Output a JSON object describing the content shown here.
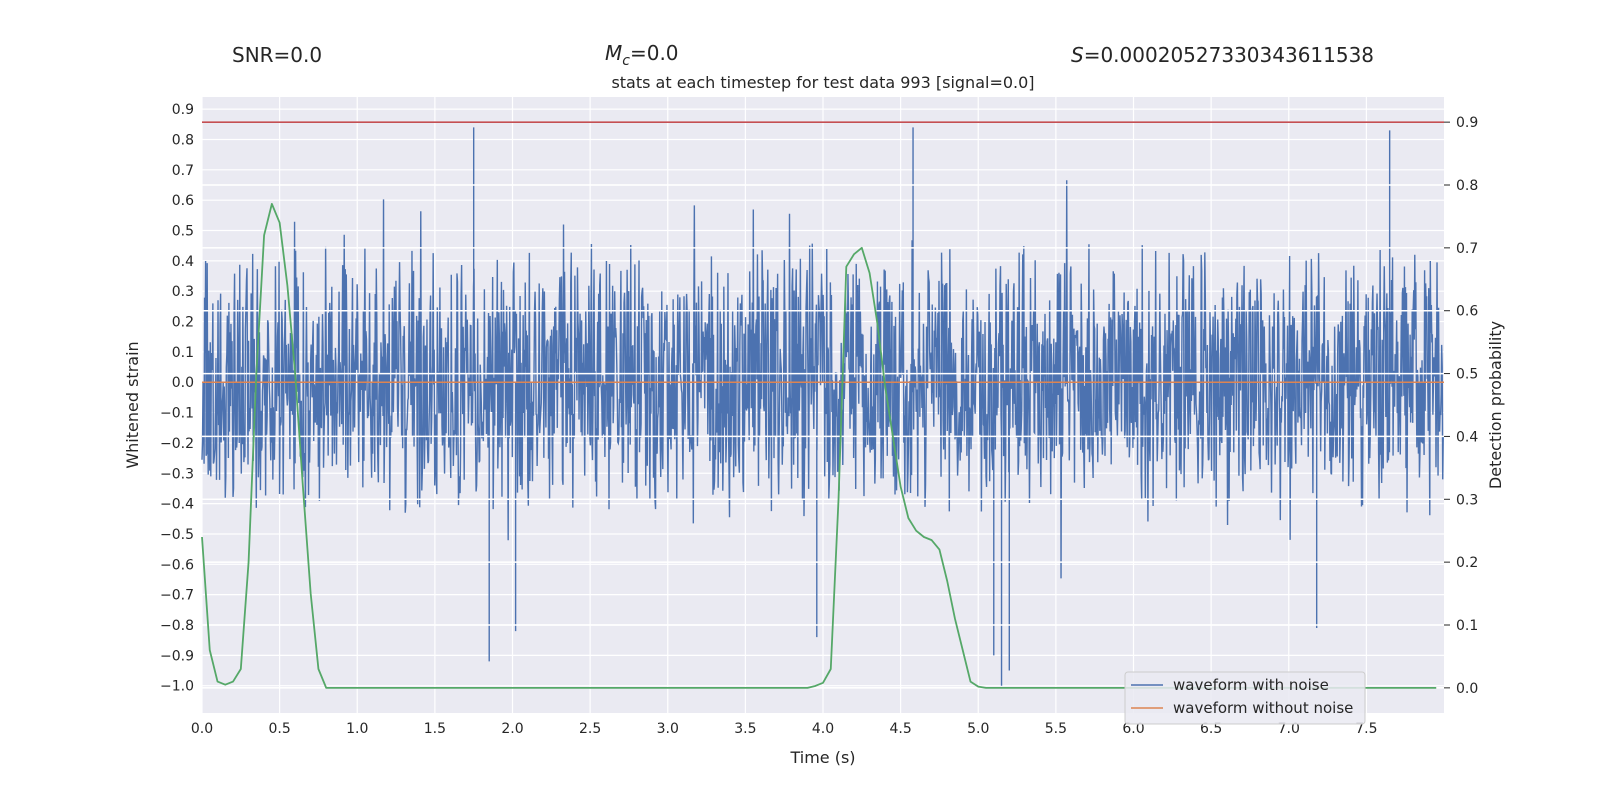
{
  "header": {
    "snr": "SNR=0.0",
    "mc_symbol": "M",
    "mc_sub": "c",
    "mc_value": "=0.0",
    "s_symbol": "S",
    "s_value": "=0.00020527330343611538"
  },
  "chart_data": {
    "type": "line",
    "title": "stats at each timestep for test data 993 [signal=0.0]",
    "xlabel": "Time (s)",
    "ylabel": "Whitened strain",
    "y2label": "Detection probability",
    "xlim": [
      0.0,
      8.0
    ],
    "ylim": [
      -1.09,
      0.94
    ],
    "y2lim": [
      -0.04,
      0.94
    ],
    "xticks": [
      "0.0",
      "0.5",
      "1.0",
      "1.5",
      "2.0",
      "2.5",
      "3.0",
      "3.5",
      "4.0",
      "4.5",
      "5.0",
      "5.5",
      "6.0",
      "6.5",
      "7.0",
      "7.5"
    ],
    "yticks": [
      "0.9",
      "0.8",
      "0.7",
      "0.6",
      "0.5",
      "0.4",
      "0.3",
      "0.2",
      "0.1",
      "0.0",
      "-0.1",
      "-0.2",
      "-0.3",
      "-0.4",
      "-0.5",
      "-0.6",
      "-0.7",
      "-0.8",
      "-0.9",
      "-1.0"
    ],
    "y2ticks": [
      "0.9",
      "0.8",
      "0.7",
      "0.6",
      "0.5",
      "0.4",
      "0.3",
      "0.2",
      "0.1",
      "0.0"
    ],
    "threshold": 0.9,
    "series": [
      {
        "name": "waveform with noise",
        "color": "#4c72b0",
        "axis": "left",
        "description": "dense noise approx. within +/-0.45, peaks near 0.84 and -1.0",
        "noise_seed": 993,
        "spikes": [
          [
            1.75,
            0.84
          ],
          [
            4.58,
            0.84
          ],
          [
            7.65,
            0.83
          ],
          [
            1.85,
            -0.92
          ],
          [
            5.15,
            -1.0
          ],
          [
            5.1,
            -0.9
          ],
          [
            5.2,
            -0.95
          ],
          [
            3.96,
            -0.84
          ],
          [
            2.02,
            -0.82
          ],
          [
            7.18,
            -0.81
          ]
        ]
      },
      {
        "name": "waveform without noise",
        "color": "#dd8452",
        "axis": "left",
        "value": 0.0
      },
      {
        "name": "detection probability",
        "color": "#55a868",
        "axis": "right",
        "x": [
          0.0,
          0.05,
          0.1,
          0.15,
          0.2,
          0.25,
          0.3,
          0.35,
          0.4,
          0.45,
          0.5,
          0.55,
          0.6,
          0.65,
          0.7,
          0.75,
          0.8,
          0.85,
          0.9,
          1.0,
          2.0,
          3.0,
          3.8,
          3.9,
          3.95,
          4.0,
          4.05,
          4.1,
          4.15,
          4.2,
          4.25,
          4.3,
          4.35,
          4.4,
          4.45,
          4.5,
          4.55,
          4.6,
          4.65,
          4.7,
          4.75,
          4.8,
          4.85,
          4.9,
          4.95,
          5.0,
          5.05,
          5.1,
          5.2,
          6.0,
          7.0,
          7.95
        ],
        "y": [
          0.24,
          0.06,
          0.01,
          0.005,
          0.01,
          0.03,
          0.2,
          0.5,
          0.72,
          0.77,
          0.74,
          0.64,
          0.5,
          0.32,
          0.15,
          0.03,
          0.0,
          0.0,
          0.0,
          0.0,
          0.0,
          0.0,
          0.0,
          0.0,
          0.003,
          0.008,
          0.03,
          0.3,
          0.67,
          0.69,
          0.7,
          0.66,
          0.58,
          0.48,
          0.4,
          0.32,
          0.27,
          0.25,
          0.24,
          0.235,
          0.22,
          0.17,
          0.11,
          0.06,
          0.01,
          0.002,
          0.0,
          0.0,
          0.0,
          0.0,
          0.0,
          0.0
        ]
      }
    ],
    "legend": [
      "waveform with noise",
      "waveform without noise"
    ],
    "legend_position": "lower-right"
  }
}
